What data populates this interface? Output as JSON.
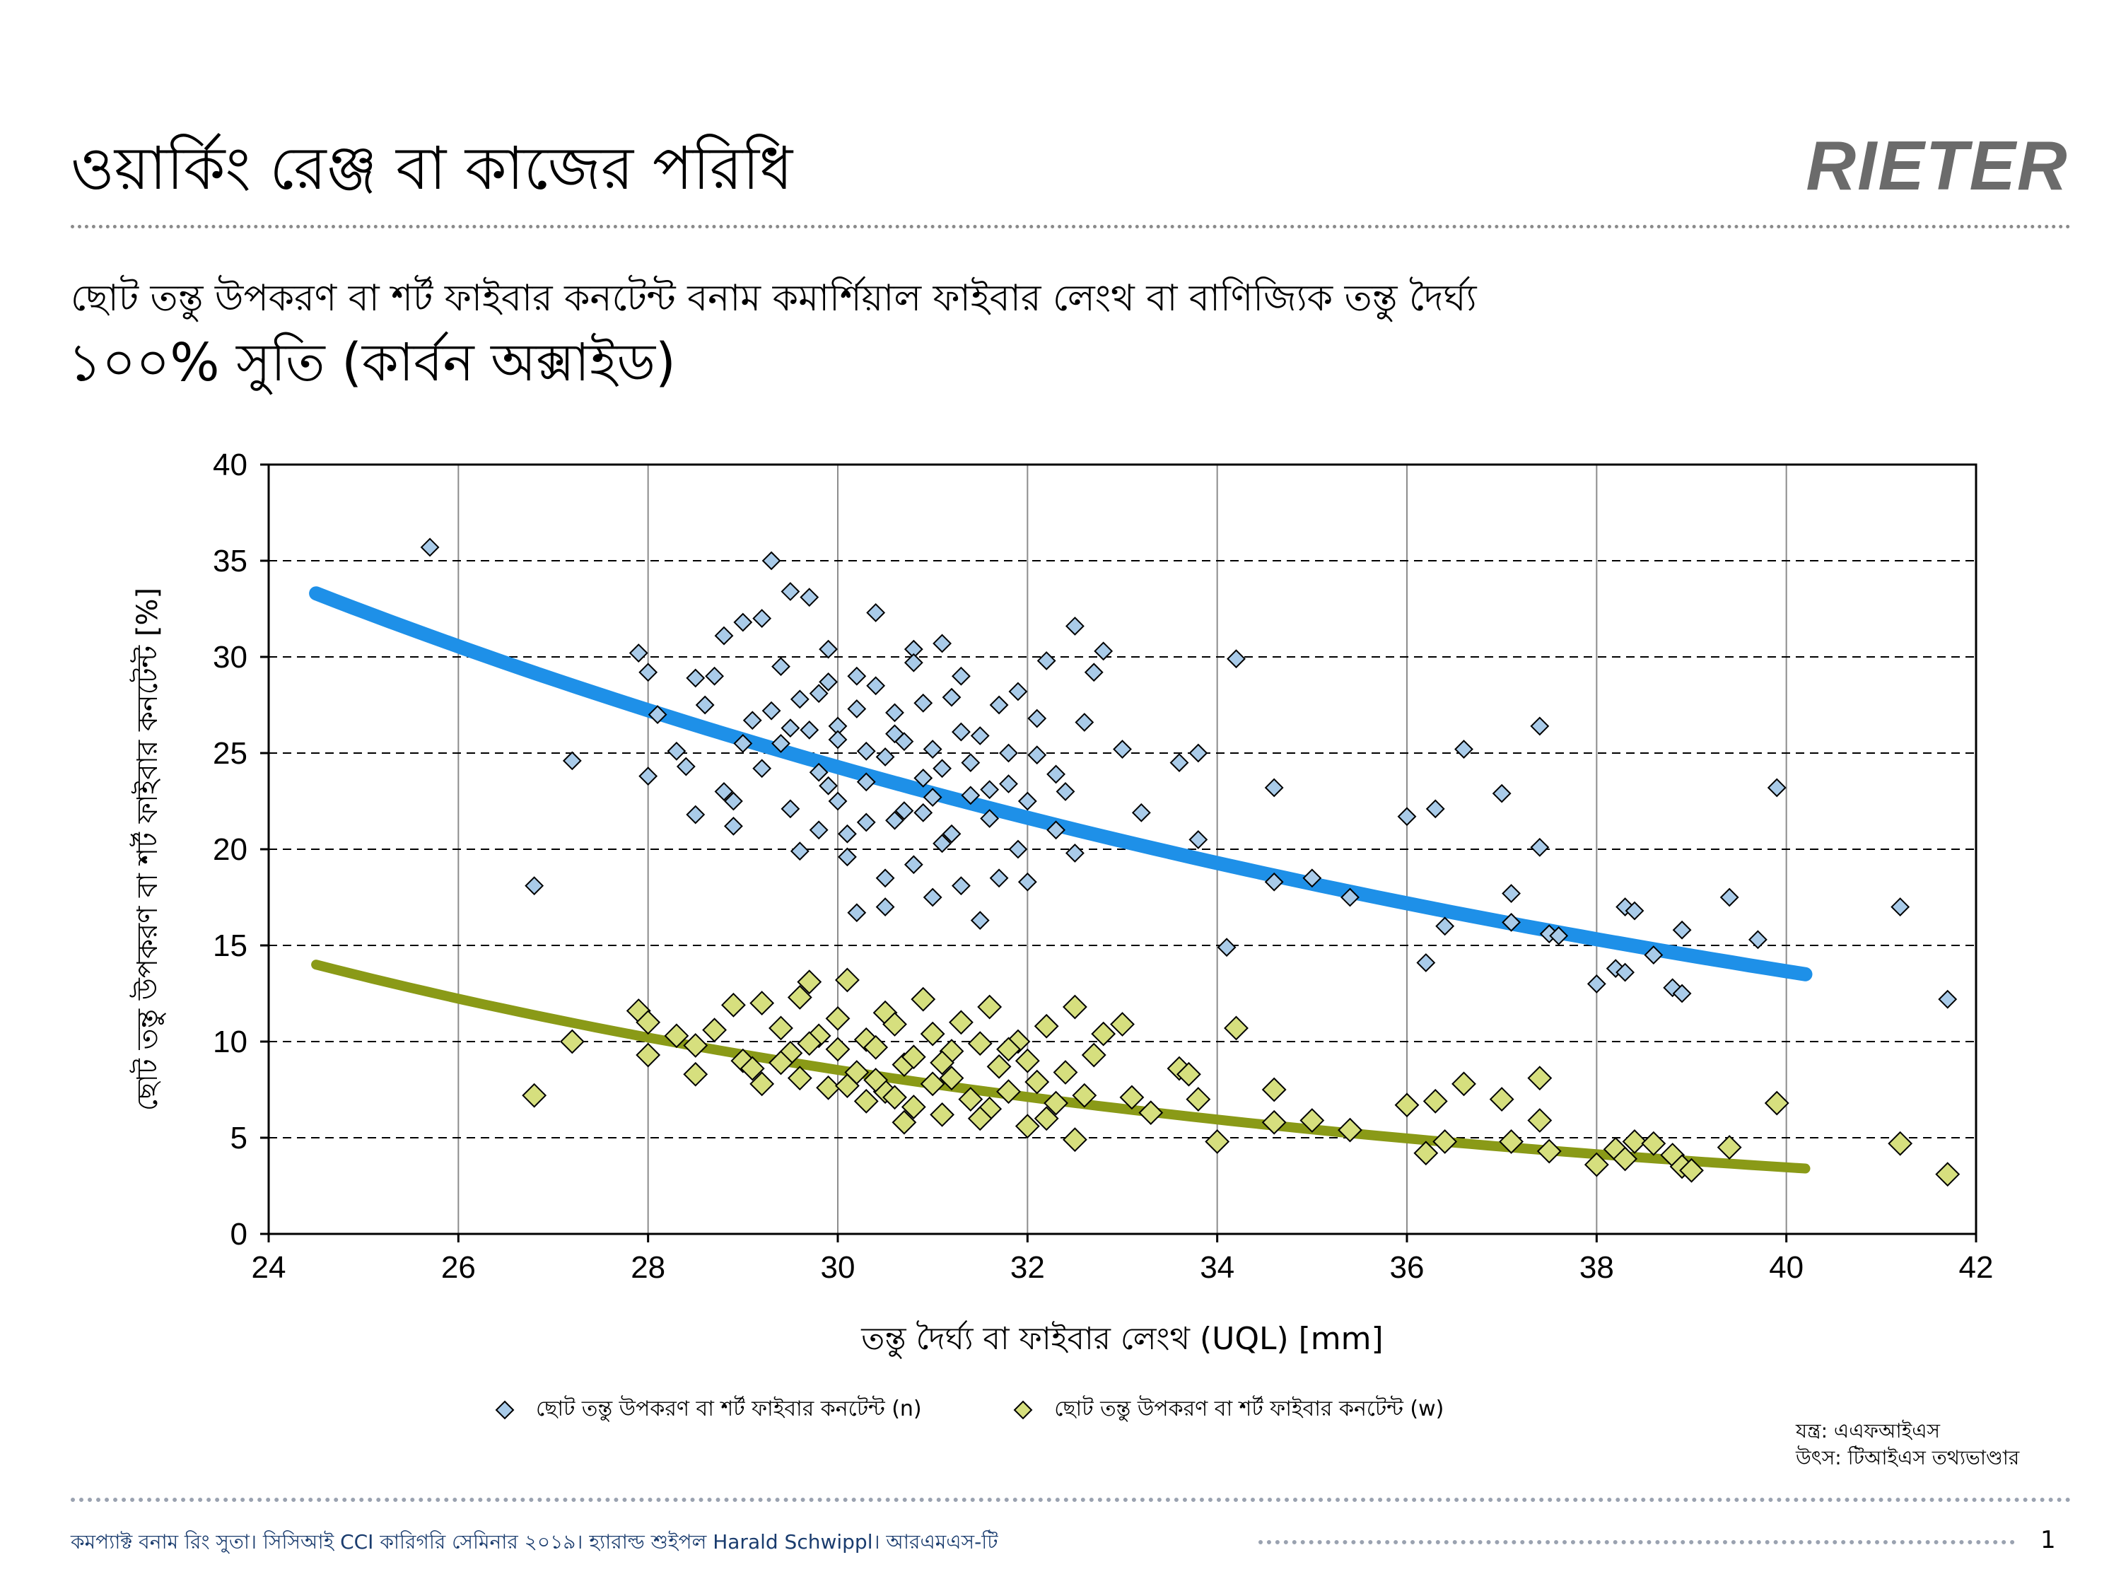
{
  "slide": {
    "title": "ওয়ার্কিং রেঞ্জ বা কাজের পরিধি",
    "subtitle_line1": "ছোট তন্তু উপকরণ বা শর্ট ফাইবার কনটেন্ট বনাম কমার্শিয়াল ফাইবার লেংথ বা বাণিজ্যিক তন্তু দৈর্ঘ্য",
    "subtitle_line2": "১০০% সুতি (কার্বন অক্সাইড)",
    "source_line1": "যন্ত্র: এএফআইএস",
    "source_line2": "উৎস: টিআইএস তথ্যভাণ্ডার",
    "footer": "কমপ্যাক্ট বনাম রিং সুতা। সিসিআই CCI কারিগরি সেমিনার ২০১৯। হ্যারাল্ড শুইপল Harald Schwippl। আরএমএস-টি",
    "page_number": "1"
  },
  "logo": {
    "text": "RIETER",
    "color": "#6b6b6b"
  },
  "colors": {
    "n_fill": "#a9cbe9",
    "n_trend": "#1e90e8",
    "w_fill": "#d6df7e",
    "w_trend": "#8a9a17"
  },
  "chart_data": {
    "type": "scatter",
    "xlabel": "তন্তু দৈর্ঘ্য বা ফাইবার লেংথ (UQL) [mm]",
    "ylabel": "ছোট তন্তু উপকরণ বা শর্ট ফাইবার কনটেন্ট  [%]",
    "xlim": [
      24,
      42
    ],
    "ylim": [
      0,
      40
    ],
    "xticks": [
      24,
      26,
      28,
      30,
      32,
      34,
      36,
      38,
      40,
      42
    ],
    "yticks": [
      0,
      5,
      10,
      15,
      20,
      25,
      30,
      35,
      40
    ],
    "vertical_grid": "solid",
    "horizontal_grid": "dashed",
    "legend_position": "bottom",
    "series": [
      {
        "name": "ছোট তন্তু উপকরণ বা শর্ট ফাইবার কনটেন্ট (n)",
        "marker": "diamond",
        "points": [
          [
            25.7,
            35.7
          ],
          [
            26.8,
            18.1
          ],
          [
            27.2,
            24.6
          ],
          [
            27.9,
            30.2
          ],
          [
            28.0,
            29.2
          ],
          [
            28.1,
            27.0
          ],
          [
            28.0,
            23.8
          ],
          [
            28.3,
            25.1
          ],
          [
            28.4,
            24.3
          ],
          [
            28.5,
            21.8
          ],
          [
            28.5,
            28.9
          ],
          [
            28.6,
            27.5
          ],
          [
            28.7,
            29.0
          ],
          [
            28.8,
            23.0
          ],
          [
            28.8,
            31.1
          ],
          [
            28.9,
            22.5
          ],
          [
            28.9,
            21.2
          ],
          [
            29.0,
            31.8
          ],
          [
            29.0,
            25.5
          ],
          [
            29.1,
            26.7
          ],
          [
            29.2,
            32.0
          ],
          [
            29.2,
            24.2
          ],
          [
            29.3,
            27.2
          ],
          [
            29.3,
            35.0
          ],
          [
            29.4,
            29.5
          ],
          [
            29.4,
            25.5
          ],
          [
            29.5,
            33.4
          ],
          [
            29.5,
            22.1
          ],
          [
            29.6,
            19.9
          ],
          [
            29.6,
            27.8
          ],
          [
            29.7,
            33.1
          ],
          [
            29.7,
            26.2
          ],
          [
            29.8,
            21.0
          ],
          [
            29.8,
            24.0
          ],
          [
            29.9,
            30.4
          ],
          [
            29.9,
            28.7
          ],
          [
            30.0,
            26.4
          ],
          [
            30.0,
            22.5
          ],
          [
            30.1,
            20.8
          ],
          [
            30.1,
            19.6
          ],
          [
            30.2,
            16.7
          ],
          [
            30.2,
            29.0
          ],
          [
            30.3,
            25.1
          ],
          [
            30.3,
            23.5
          ],
          [
            30.4,
            32.3
          ],
          [
            30.4,
            28.5
          ],
          [
            30.5,
            17.0
          ],
          [
            30.5,
            18.5
          ],
          [
            30.6,
            26.0
          ],
          [
            30.6,
            21.5
          ],
          [
            30.7,
            25.6
          ],
          [
            30.7,
            22.0
          ],
          [
            30.8,
            19.2
          ],
          [
            30.8,
            30.4
          ],
          [
            30.9,
            27.6
          ],
          [
            30.9,
            23.7
          ],
          [
            31.0,
            17.5
          ],
          [
            31.0,
            25.2
          ],
          [
            31.1,
            30.7
          ],
          [
            31.1,
            24.2
          ],
          [
            31.2,
            20.8
          ],
          [
            31.3,
            29.0
          ],
          [
            31.3,
            18.1
          ],
          [
            31.4,
            22.8
          ],
          [
            31.5,
            16.3
          ],
          [
            31.5,
            25.9
          ],
          [
            31.6,
            21.6
          ],
          [
            31.7,
            27.5
          ],
          [
            31.7,
            18.5
          ],
          [
            31.8,
            23.4
          ],
          [
            31.9,
            20.0
          ],
          [
            32.0,
            18.3
          ],
          [
            32.0,
            22.5
          ],
          [
            32.1,
            24.9
          ],
          [
            32.2,
            29.8
          ],
          [
            32.3,
            21.0
          ],
          [
            32.4,
            23.0
          ],
          [
            32.5,
            31.6
          ],
          [
            32.5,
            19.8
          ],
          [
            32.6,
            26.6
          ],
          [
            32.7,
            29.2
          ],
          [
            32.8,
            30.3
          ],
          [
            33.0,
            25.2
          ],
          [
            33.2,
            21.9
          ],
          [
            33.6,
            24.5
          ],
          [
            33.8,
            25.0
          ],
          [
            33.8,
            20.5
          ],
          [
            34.1,
            14.9
          ],
          [
            34.2,
            29.9
          ],
          [
            34.6,
            23.2
          ],
          [
            34.6,
            18.3
          ],
          [
            35.0,
            18.5
          ],
          [
            35.4,
            17.5
          ],
          [
            36.0,
            21.7
          ],
          [
            36.2,
            14.1
          ],
          [
            36.3,
            22.1
          ],
          [
            36.4,
            16.0
          ],
          [
            36.6,
            25.2
          ],
          [
            37.0,
            22.9
          ],
          [
            37.1,
            17.7
          ],
          [
            37.1,
            16.2
          ],
          [
            37.4,
            20.1
          ],
          [
            37.4,
            26.4
          ],
          [
            37.5,
            15.6
          ],
          [
            37.6,
            15.5
          ],
          [
            38.0,
            13.0
          ],
          [
            38.2,
            13.8
          ],
          [
            38.3,
            13.6
          ],
          [
            38.3,
            17.0
          ],
          [
            38.4,
            16.8
          ],
          [
            38.6,
            14.5
          ],
          [
            38.8,
            12.8
          ],
          [
            38.9,
            12.5
          ],
          [
            38.9,
            15.8
          ],
          [
            39.4,
            17.5
          ],
          [
            39.7,
            15.3
          ],
          [
            39.9,
            23.2
          ],
          [
            41.2,
            17.0
          ],
          [
            41.7,
            12.2
          ],
          [
            29.5,
            26.3
          ],
          [
            29.8,
            28.1
          ],
          [
            30.2,
            27.3
          ],
          [
            30.5,
            24.8
          ],
          [
            30.9,
            21.9
          ],
          [
            31.1,
            20.3
          ],
          [
            31.3,
            26.1
          ],
          [
            31.6,
            23.1
          ],
          [
            31.9,
            28.2
          ],
          [
            32.1,
            26.8
          ],
          [
            30.0,
            25.7
          ],
          [
            30.6,
            27.1
          ],
          [
            31.0,
            22.7
          ],
          [
            31.4,
            24.5
          ],
          [
            31.8,
            25.0
          ],
          [
            32.3,
            23.9
          ],
          [
            29.9,
            23.3
          ],
          [
            30.3,
            21.4
          ],
          [
            30.8,
            29.7
          ],
          [
            31.2,
            27.9
          ]
        ],
        "trend": {
          "start": [
            24.5,
            33.3
          ],
          "end": [
            40.2,
            13.5
          ]
        }
      },
      {
        "name": "ছোট তন্তু উপকরণ বা শর্ট ফাইবার কনটেন্ট  (w)",
        "marker": "diamond",
        "points": [
          [
            26.8,
            7.2
          ],
          [
            27.2,
            10.0
          ],
          [
            27.9,
            11.6
          ],
          [
            28.0,
            9.3
          ],
          [
            28.0,
            11.0
          ],
          [
            28.3,
            10.3
          ],
          [
            28.5,
            9.8
          ],
          [
            28.5,
            8.3
          ],
          [
            28.7,
            10.6
          ],
          [
            28.9,
            11.9
          ],
          [
            29.0,
            9.0
          ],
          [
            29.1,
            8.6
          ],
          [
            29.2,
            12.0
          ],
          [
            29.2,
            7.8
          ],
          [
            29.4,
            10.7
          ],
          [
            29.5,
            9.4
          ],
          [
            29.6,
            12.3
          ],
          [
            29.6,
            8.1
          ],
          [
            29.7,
            13.1
          ],
          [
            29.8,
            10.3
          ],
          [
            29.9,
            7.6
          ],
          [
            30.0,
            9.6
          ],
          [
            30.0,
            11.2
          ],
          [
            30.1,
            13.2
          ],
          [
            30.2,
            8.4
          ],
          [
            30.3,
            10.1
          ],
          [
            30.3,
            6.9
          ],
          [
            30.4,
            9.7
          ],
          [
            30.5,
            11.5
          ],
          [
            30.5,
            7.4
          ],
          [
            30.6,
            10.9
          ],
          [
            30.7,
            8.8
          ],
          [
            30.7,
            5.8
          ],
          [
            30.8,
            9.2
          ],
          [
            30.9,
            12.2
          ],
          [
            31.0,
            7.8
          ],
          [
            31.0,
            10.4
          ],
          [
            31.1,
            6.2
          ],
          [
            31.2,
            9.5
          ],
          [
            31.2,
            8.1
          ],
          [
            31.3,
            11.0
          ],
          [
            31.4,
            7.0
          ],
          [
            31.5,
            9.9
          ],
          [
            31.6,
            6.5
          ],
          [
            31.6,
            11.8
          ],
          [
            31.7,
            8.7
          ],
          [
            31.8,
            7.4
          ],
          [
            31.9,
            10.0
          ],
          [
            32.0,
            5.6
          ],
          [
            32.0,
            9.0
          ],
          [
            32.1,
            7.9
          ],
          [
            32.2,
            10.8
          ],
          [
            32.3,
            6.8
          ],
          [
            32.4,
            8.4
          ],
          [
            32.5,
            11.8
          ],
          [
            32.5,
            4.9
          ],
          [
            32.6,
            7.2
          ],
          [
            32.7,
            9.3
          ],
          [
            32.8,
            10.4
          ],
          [
            33.0,
            10.9
          ],
          [
            33.1,
            7.1
          ],
          [
            33.3,
            6.3
          ],
          [
            33.6,
            8.6
          ],
          [
            33.7,
            8.3
          ],
          [
            33.8,
            7.0
          ],
          [
            34.0,
            4.8
          ],
          [
            34.2,
            10.7
          ],
          [
            34.6,
            7.5
          ],
          [
            34.6,
            5.8
          ],
          [
            35.0,
            5.9
          ],
          [
            35.4,
            5.4
          ],
          [
            36.0,
            6.7
          ],
          [
            36.2,
            4.2
          ],
          [
            36.3,
            6.9
          ],
          [
            36.4,
            4.8
          ],
          [
            36.6,
            7.8
          ],
          [
            37.0,
            7.0
          ],
          [
            37.1,
            4.8
          ],
          [
            37.4,
            5.9
          ],
          [
            37.4,
            8.1
          ],
          [
            37.5,
            4.3
          ],
          [
            38.0,
            3.6
          ],
          [
            38.2,
            4.4
          ],
          [
            38.3,
            3.9
          ],
          [
            38.4,
            4.8
          ],
          [
            38.6,
            4.7
          ],
          [
            38.8,
            4.1
          ],
          [
            38.9,
            3.5
          ],
          [
            39.0,
            3.3
          ],
          [
            39.4,
            4.5
          ],
          [
            39.9,
            6.8
          ],
          [
            41.2,
            4.7
          ],
          [
            41.7,
            3.1
          ],
          [
            29.4,
            8.9
          ],
          [
            29.7,
            9.9
          ],
          [
            30.1,
            7.7
          ],
          [
            30.4,
            8.0
          ],
          [
            30.8,
            6.6
          ],
          [
            31.1,
            8.9
          ],
          [
            31.5,
            6.0
          ],
          [
            31.8,
            9.6
          ],
          [
            32.2,
            6.0
          ],
          [
            30.6,
            7.1
          ]
        ],
        "trend": {
          "start": [
            24.5,
            14.0
          ],
          "end": [
            40.2,
            3.4
          ]
        }
      }
    ]
  }
}
